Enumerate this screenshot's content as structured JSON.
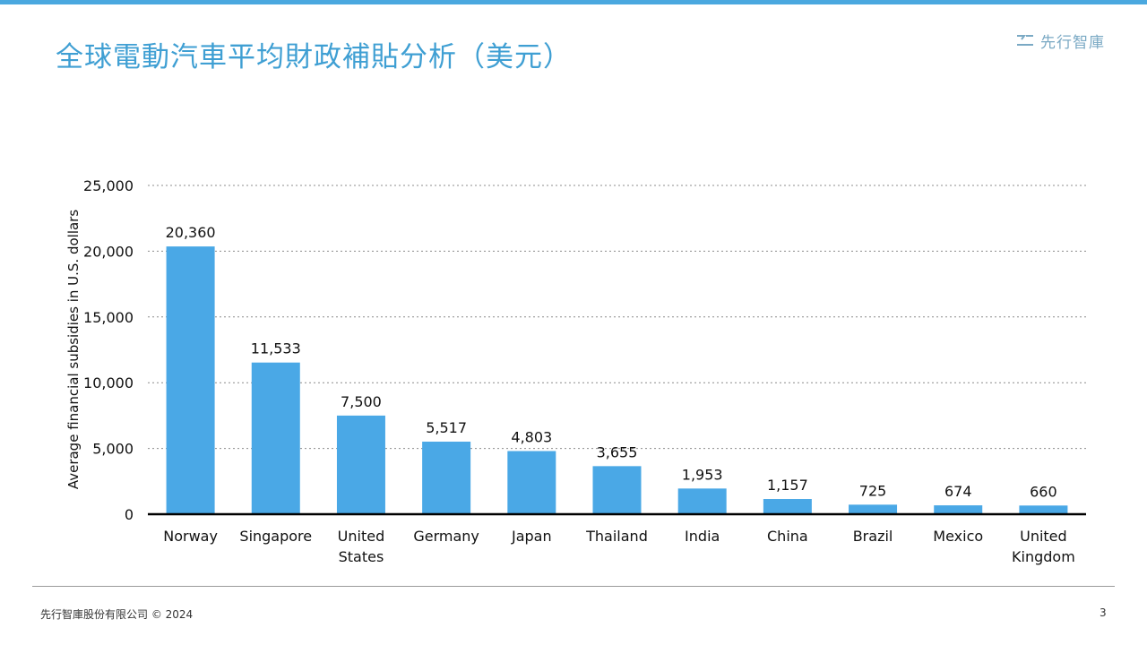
{
  "slide": {
    "title": "全球電動汽車平均財政補貼分析（美元）",
    "logo_text": "先行智庫",
    "footer_left": "先行智庫股份有限公司 © 2024",
    "page_number": "3"
  },
  "colors": {
    "accent": "#4aa8df",
    "bar": "#4aa8e6",
    "title": "#3f9fd3"
  },
  "chart_data": {
    "type": "bar",
    "title": "",
    "xlabel": "",
    "ylabel": "Average financial subsidies in U.S. dollars",
    "categories": [
      "Norway",
      "Singapore",
      "United States",
      "Germany",
      "Japan",
      "Thailand",
      "India",
      "China",
      "Brazil",
      "Mexico",
      "United Kingdom"
    ],
    "category_lines": [
      [
        "Norway"
      ],
      [
        "Singapore"
      ],
      [
        "United",
        "States"
      ],
      [
        "Germany"
      ],
      [
        "Japan"
      ],
      [
        "Thailand"
      ],
      [
        "India"
      ],
      [
        "China"
      ],
      [
        "Brazil"
      ],
      [
        "Mexico"
      ],
      [
        "United",
        "Kingdom"
      ]
    ],
    "values": [
      20360,
      11533,
      7500,
      5517,
      4803,
      3655,
      1953,
      1157,
      725,
      674,
      660
    ],
    "value_labels": [
      "20,360",
      "11,533",
      "7,500",
      "5,517",
      "4,803",
      "3,655",
      "1,953",
      "1,157",
      "725",
      "674",
      "660"
    ],
    "ylim": [
      0,
      25000
    ],
    "yticks": [
      0,
      5000,
      10000,
      15000,
      20000,
      25000
    ],
    "ytick_labels": [
      "0",
      "5,000",
      "10,000",
      "15,000",
      "20,000",
      "25,000"
    ],
    "grid": true,
    "legend": "none"
  }
}
